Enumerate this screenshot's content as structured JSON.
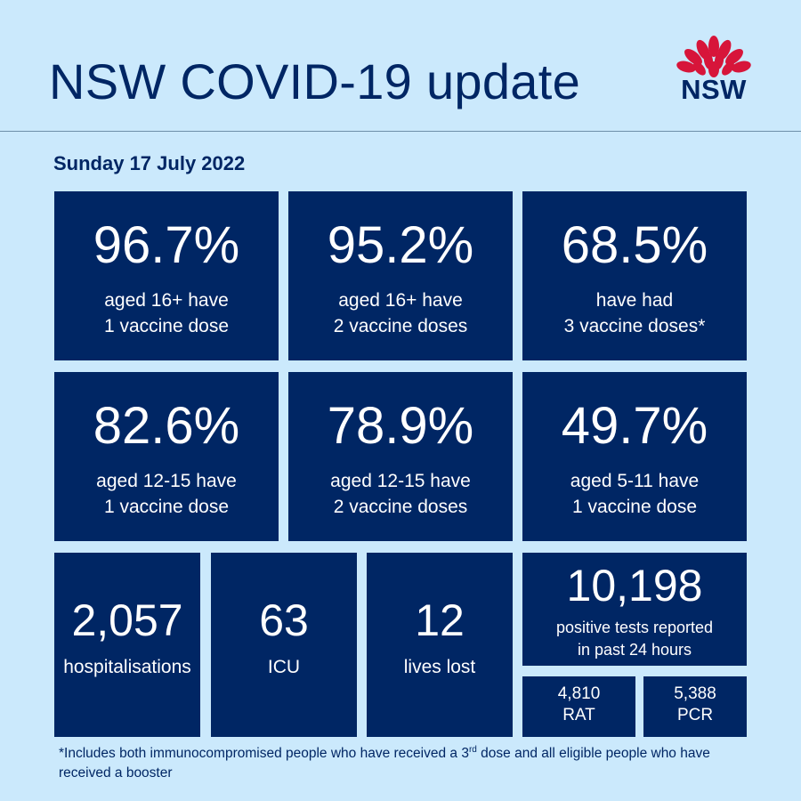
{
  "header": {
    "title": "NSW COVID-19 update",
    "logo_text": "NSW"
  },
  "date": "Sunday 17 July 2022",
  "vaccination": [
    {
      "value": "96.7%",
      "line1": "aged 16+ have",
      "line2": "1 vaccine dose"
    },
    {
      "value": "95.2%",
      "line1": "aged 16+ have",
      "line2": "2 vaccine doses"
    },
    {
      "value": "68.5%",
      "line1": "have had",
      "line2": "3 vaccine doses*"
    },
    {
      "value": "82.6%",
      "line1": "aged 12-15 have",
      "line2": "1 vaccine dose"
    },
    {
      "value": "78.9%",
      "line1": "aged 12-15 have",
      "line2": "2 vaccine doses"
    },
    {
      "value": "49.7%",
      "line1": "aged 5-11 have",
      "line2": "1 vaccine dose"
    }
  ],
  "stats": [
    {
      "value": "2,057",
      "label": "hospitalisations"
    },
    {
      "value": "63",
      "label": "ICU"
    },
    {
      "value": "12",
      "label": "lives lost"
    }
  ],
  "tests": {
    "value": "10,198",
    "line1": "positive tests reported",
    "line2": "in past 24 hours",
    "rat": {
      "value": "4,810",
      "label": "RAT"
    },
    "pcr": {
      "value": "5,388",
      "label": "PCR"
    }
  },
  "footnote": {
    "part1": "*Includes both immunocompromised people who have received a 3",
    "sup": "rd",
    "part2": " dose and all eligible people who have received a booster"
  },
  "colors": {
    "background": "#cbe9fc",
    "tile": "#002664",
    "accent_red": "#d7153a"
  }
}
